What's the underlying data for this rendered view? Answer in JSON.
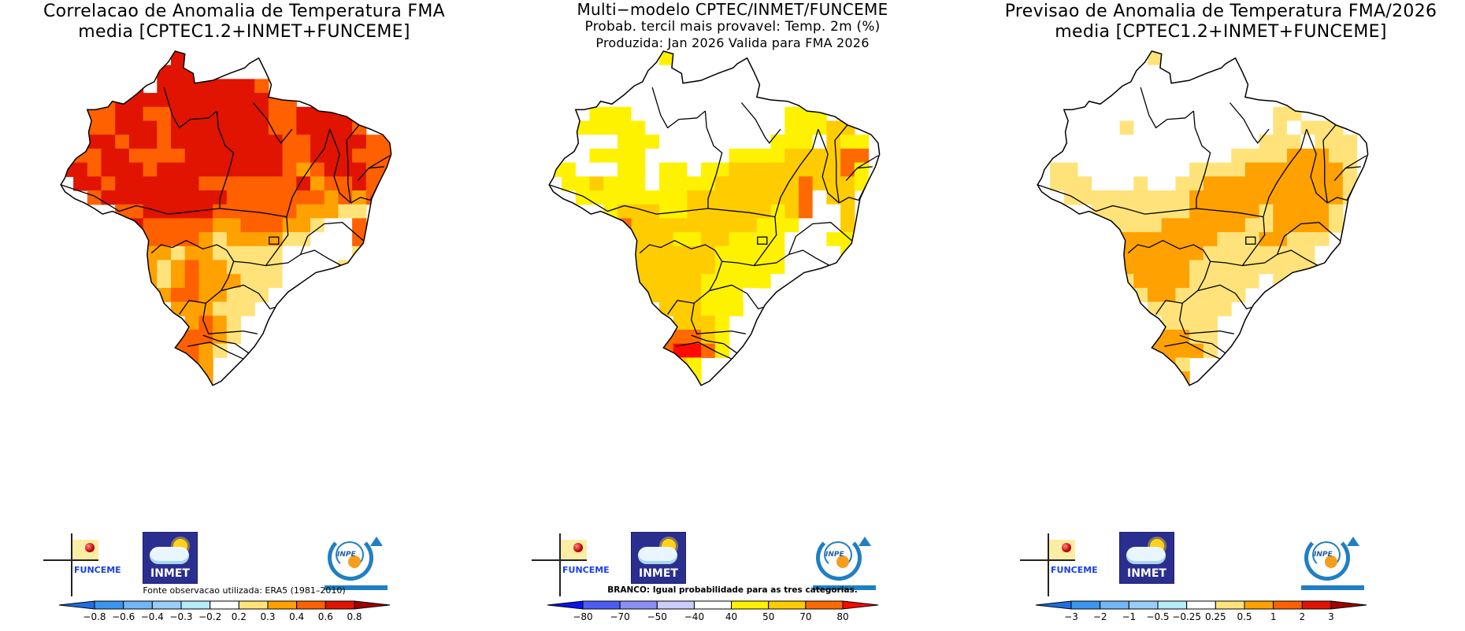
{
  "panels": [
    {
      "id": "correlation",
      "title_lines": [
        "Correlacao de Anomalia de Temperatura FMA",
        "media [CPTEC1.2+INMET+FUNCEME]"
      ],
      "footnote": "Fonte observacao utilizada: ERA5 (1981–2010)",
      "colorbar": {
        "ticks": [
          "−0.8",
          "−0.6",
          "−0.4",
          "−0.3",
          "−0.2",
          "0.2",
          "0.3",
          "0.4",
          "0.6",
          "0.8"
        ],
        "colors": [
          "#1e6fe0",
          "#3c95f0",
          "#72b6f5",
          "#98cef7",
          "#b4ecf8",
          "#ffffff",
          "#ffe37a",
          "#ffa100",
          "#ff6000",
          "#e01400",
          "#a00000"
        ]
      },
      "dominant_classes": "Mostly 0.4-0.8 (red/orange) across North and Center-West; 0.2-0.4 in Southeast; white (-0.2 to 0.2) in Minas Gerais/Rio de Janeiro/Sao Paulo coast",
      "grid": [
        "..........RR..............",
        ".........RRRR..W..........",
        ".....OOR.RRRRRRRO.........",
        "....OORRRRRRRRRRROO.......",
        "....OORROORRRRRRROORRRR...",
        "...OOORRRORRRRRRROORRRRO..",
        "..OORRORRORRRRRRRROORRRROO",
        "..ROORROOOORRRRRRROORRROOO",
        "..RRORRRORRRRRRRRROAORRROO",
        "...RRORRRRRROOOOOOORAOOROO",
        "....ORRRRRRRRROOOOOOOAOAO.",
        "......OORRRRROOOOOOAAAYY..",
        ".......ROOOOOAAOOOAAYWWO..",
        "........OOOOAYAAAAYYWWWO..",
        "........AAYAAYYYYYWWWWWY..",
        "........AYAOAAYYYYWWWWY...",
        "........AYAOAAAYYYWWW.....",
        ".........AOOAAYYYW........",
        "..........AAAYYY..........",
        "...........AOAY...........",
        "..........OOOAY...........",
        "..........OOAY............",
        "...........OA.............",
        "............A............."
      ]
    },
    {
      "id": "tercile_probability",
      "title_lines": [
        "Multi−modelo CPTEC/INMET/FUNCEME",
        "Probab. tercil mais provavel: Temp. 2m (%)",
        "Produzida: Jan 2026  Valida para FMA 2026"
      ],
      "footnote": "BRANCO: Igual probabilidade para as tres categorias.",
      "colorbar": {
        "ticks": [
          "−80",
          "−70",
          "−50",
          "−40",
          "40",
          "50",
          "70",
          "80"
        ],
        "colors": [
          "#0a12f0",
          "#4d5cf5",
          "#8a90f5",
          "#cccdfa",
          "#ffffff",
          "#fff200",
          "#ffcc00",
          "#ff6a00",
          "#ff0a00"
        ]
      },
      "dominant_classes": "Mostly 40-50 (yellow) and 50-70 (gold) across Brazil; 70-80 (orange) spots in Northeast and Rio Grande do Sul; white (equal probability) in much of Amazon and Southeast coast",
      "grid": [
        "..........Y...............",
        ".........WWWW..W..........",
        ".....WWW.WWWWWWWW.........",
        "....WWWWWWWWWWWWWWW.......",
        "....WYYYWWWWWWWWWWWYYY....",
        "...WYYYYYWWWWWWWWWWYYYGG..",
        "..YYWWWYYYWWWWWWWWYYYWGYY.",
        "..YWWYYYYWWWWWWYYYYGGGGOO.",
        "..YYWWWYYWYYWYYGGGGGGGGOY.",
        "...YYGYYYWYYYYGGGGGGOGGGY.",
        "....YYYYYYYYGGGGGGGGOWGG..",
        "......YGGGYYGGGGGGYGOWWG..",
        ".......OGGGGGGGGGYYYWWWG..",
        "........GGGYYGGYYYYWWWYY..",
        "........GGGGGGYYYYYWWWWY..",
        "........GGGGGGYYYYYWWW....",
        "........GGGGGYYYYYWWW.....",
        ".........GGGGYYYW.........",
        "..........GGGYYY..........",
        "...........GGGY...........",
        "..........OOOGY...........",
        "..........ORROY...........",
        "...........GY.............",
        "............Y............."
      ]
    },
    {
      "id": "anomaly_forecast",
      "title_lines": [
        "Previsao de Anomalia de Temperatura FMA/2026",
        "media [CPTEC1.2+INMET+FUNCEME]"
      ],
      "footnote": "",
      "colorbar": {
        "ticks": [
          "−3",
          "−2",
          "−1",
          "−0.5",
          "−0.25",
          "0.25",
          "0.5",
          "1",
          "2",
          "3"
        ],
        "colors": [
          "#1e6fe0",
          "#3c95f0",
          "#72b6f5",
          "#98cef7",
          "#b4ecf8",
          "#ffffff",
          "#ffe37a",
          "#ffa100",
          "#ff6000",
          "#e01400",
          "#a00000"
        ]
      },
      "dominant_classes": "0.5-1 (orange) over Center-West, Tocantins/Bahia/Northeast interior and Rio Grande do Sul; 0.25-0.5 (light yellow) over Rondonia/Mato Grosso/Southeast/South; white (-0.25 to 0.25) over most of the Amazon",
      "grid": [
        "..........P...............",
        ".........WWWW..W..........",
        ".....WWW.WWWWWWWW.........",
        "....WWWWWWWWWWWWWWW.......",
        "....WWWWWWWWWWWWWWWPP.....",
        "...WWWWWPWWWWWWWWWWPWPPP..",
        "..WWWWWWWWWWWWWWWWPPPWPPP.",
        "..WWWWWWWWWWWWWWPPPPAAAPP.",
        "..WPPWWWWWWWWPPPPAAAAAAAP.",
        "...PPPWWWPWWPPAAAAAAAAAAP.",
        "....PPPPPPPPPAAAAAAAAAAAP.",
        "......PPPPPPPAAAAAPAAAAP..",
        ".......PPPPAAAAAAPPAAAAP..",
        "........AAAAAAAPPPAAPPP...",
        "........AAAAAAPPPPPPPPW...",
        "........AAAAAPPPPPPPPP....",
        "........PAAAAPPPPPWPP.....",
        ".........PAAPPPPP.........",
        "..........PPPPPP..........",
        "...........PPPP...........",
        "..........AAAPP...........",
        "..........AAAAP...........",
        "...........AP.............",
        "............A............."
      ]
    }
  ],
  "grid_legend": {
    "R": "class_high",
    "O": "class_midhigh",
    "A": "class_mid",
    "Y": "class_low",
    "G": "class_mid",
    "P": "class_low",
    "W": "neutral",
    "r": "class_max"
  },
  "logos": {
    "funceme": "FUNCEME",
    "inmet": "INMET",
    "inpe": "INPE"
  }
}
